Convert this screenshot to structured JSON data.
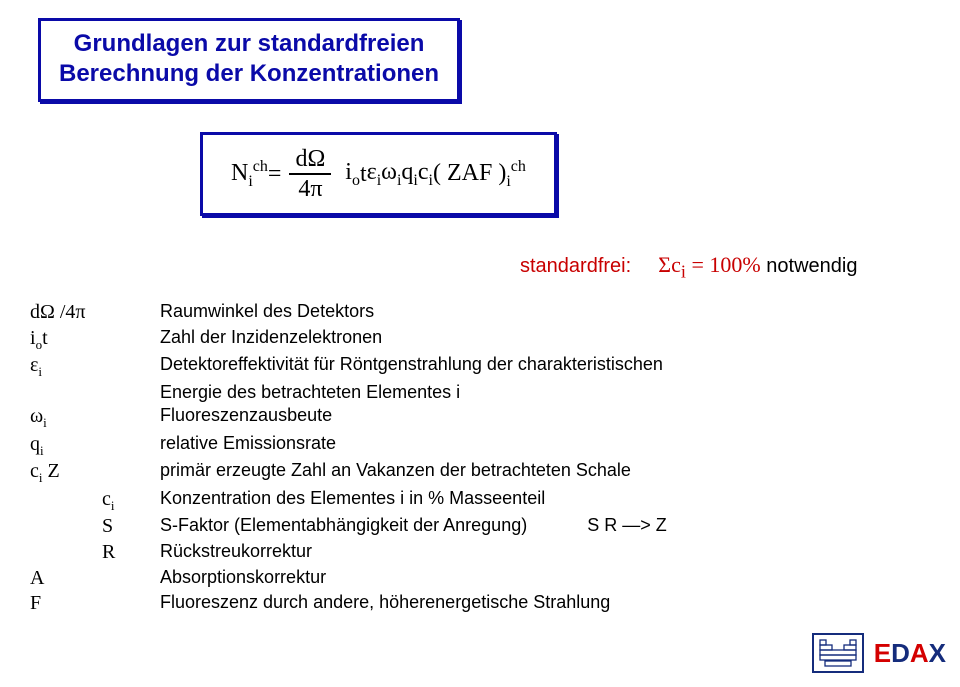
{
  "title": {
    "line1": "Grundlagen zur standardfreien",
    "line2": "Berechnung der Konzentrationen",
    "color": "#0a0aa8",
    "fontsize": 24,
    "border_color": "#0a0aa8"
  },
  "formula": {
    "lhs_N": "N",
    "lhs_sub": "i",
    "lhs_sup": "ch",
    "eq": " = ",
    "frac_top": "dΩ",
    "frac_bot": "4π",
    "rhs_io": "i",
    "rhs_io_sub": "o",
    "rhs_t": " t ",
    "eps": "ε",
    "eps_sub": "i",
    "omega": " ω",
    "omega_sub": "i",
    "q": " q",
    "q_sub": "i",
    "c": " c",
    "c_sub": "i",
    "zaf": " ( ZAF )",
    "zaf_sub": "i",
    "zaf_sup": "ch",
    "color": "#000000",
    "border_color": "#0a0aa8"
  },
  "standardfrei": {
    "label": "standardfrei:",
    "sigma": "Σc",
    "sigma_sub": "i",
    "eq_val": " = 100%",
    "notwendig": "  notwendig",
    "label_color": "#c80000",
    "eq_color": "#c80000"
  },
  "definitions": [
    {
      "sym_html": "dΩ /4π",
      "desc": "Raumwinkel des Detektors"
    },
    {
      "sym_html": "i<sub>o</sub>t",
      "desc": "Zahl der Inzidenzelektronen"
    },
    {
      "sym_html": "ε<sub>i</sub>",
      "desc": "Detektoreffektivität für Röntgenstrahlung der charakteristischen"
    },
    {
      "sym_html": "",
      "desc": "Energie des betrachteten  Elementes  i"
    },
    {
      "sym_html": "ω<sub>i</sub>",
      "desc": "Fluoreszenzausbeute"
    },
    {
      "sym_html": "q<sub>i</sub>",
      "desc": "relative Emissionsrate"
    },
    {
      "sym_html": "c<sub>i</sub>  Z",
      "desc": "primär erzeugte Zahl an Vakanzen der betrachteten Schale"
    }
  ],
  "definitions_indent": [
    {
      "sym_html": "c<sub>i</sub>",
      "desc": "Konzentration des Elementes  i in % Masseenteil"
    },
    {
      "sym_html": "S",
      "desc": "S-Faktor (Elementabhängigkeit der Anregung)",
      "right": "S R —> Z"
    },
    {
      "sym_html": "R",
      "desc": "Rückstreukorrektur"
    }
  ],
  "definitions_af": [
    {
      "sym_html": "A",
      "desc": "Absorptionskorrektur"
    },
    {
      "sym_html": "F",
      "desc": "Fluoreszenz durch andere, höherenergetische Strahlung"
    }
  ],
  "logo": {
    "edax_e": "E",
    "edax_d": "D",
    "edax_a": "A",
    "edax_x": "X",
    "red": "#d40000",
    "blue": "#152c7c"
  }
}
